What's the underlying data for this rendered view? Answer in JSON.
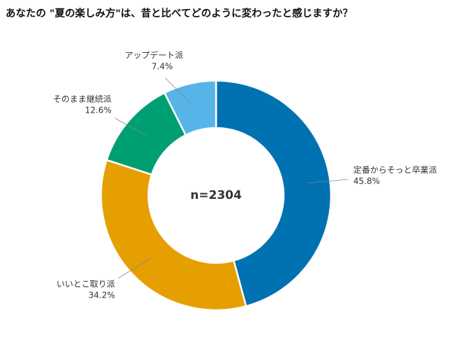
{
  "chart_data": {
    "type": "donut",
    "title": "あなたの \"夏の楽しみ方\"は、昔と比べてどのように変わったと感じますか？",
    "center_label": "n=2304",
    "categories": [
      "定番からそっと卒業派",
      "いいとこ取り派",
      "そのまま継続派",
      "アップデート派"
    ],
    "values": [
      45.8,
      34.2,
      12.6,
      7.4
    ],
    "value_labels": [
      "45.8%",
      "34.2%",
      "12.6%",
      "7.4%"
    ],
    "colors": [
      "#0072b2",
      "#e69f00",
      "#009e73",
      "#56b4e9"
    ]
  }
}
